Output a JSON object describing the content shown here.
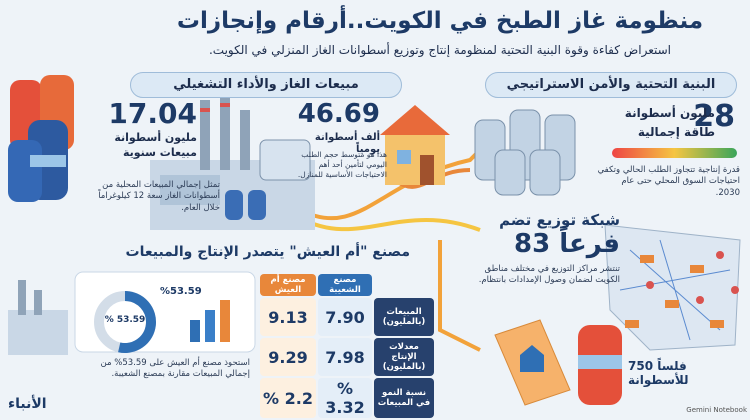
{
  "header": {
    "title": "منظومة غاز الطبخ في الكويت..أرقام وإنجازات",
    "subtitle": "استعراض كفاءة وقوة البنية التحتية لمنظومة إنتاج وتوزيع أسطوانات الغاز المنزلي في الكويت."
  },
  "infrastructure": {
    "heading": "البنية التحتية والأمن الاستراتيجي",
    "capacity": {
      "number": "28",
      "unit": "مليون أسطوانة",
      "label": "طاقة إجمالية",
      "description": "قدرة إنتاجية تتجاوز الطلب الحالي وتكفي احتياجات السوق المحلي حتى عام 2030."
    },
    "network": {
      "intro": "شبكة توزيع تضم",
      "branches": "83 فرعاً",
      "description": "تنتشر مراكز التوزيع في مختلف مناطق الكويت لضمان وصول الإمدادات بانتظام."
    },
    "price": "750 فلساً للأسطوانة"
  },
  "sales": {
    "heading": "مبيعات الغاز والأداء التشغيلي",
    "annual": {
      "number": "17.04",
      "unit": "مليون أسطوانة",
      "label": "مبيعات سنوية",
      "description": "تمثل إجمالي المبيعات المحلية من أسطوانات الغاز سعة 12 كيلوغراماً خلال العام."
    },
    "daily": {
      "number": "46.69",
      "unit": "ألف أسطوانة يومياً",
      "description": "هذا هو متوسط حجم الطلب اليومي لتأمين أحد أهم الاحتياجات الأساسية للمنازل."
    }
  },
  "factory": {
    "heading": "مصنع \"أم العيش\" يتصدر الإنتاج والمبيعات",
    "share": {
      "value": 53.59,
      "center_label": "% 53.59",
      "side_label": "%53.59"
    },
    "description": "استحوذ مصنع أم العيش على 53.59% من إجمالي المبيعات مقارنة بمصنع الشعيبة.",
    "table": {
      "columns": [
        "مصنع الشعيبة",
        "مصنع أم العيش"
      ],
      "rows": [
        [
          "المبيعات (بالمليون)",
          "7.90",
          "9.13"
        ],
        [
          "معدلات الإنتاج (بالمليون)",
          "7.98",
          "9.29"
        ],
        [
          "نسبة النمو في المبيعات",
          "% 3.32",
          "% 2.2"
        ]
      ]
    }
  },
  "footer": {
    "logo": "الأنباء",
    "credit": "Gemini Notebook"
  }
}
